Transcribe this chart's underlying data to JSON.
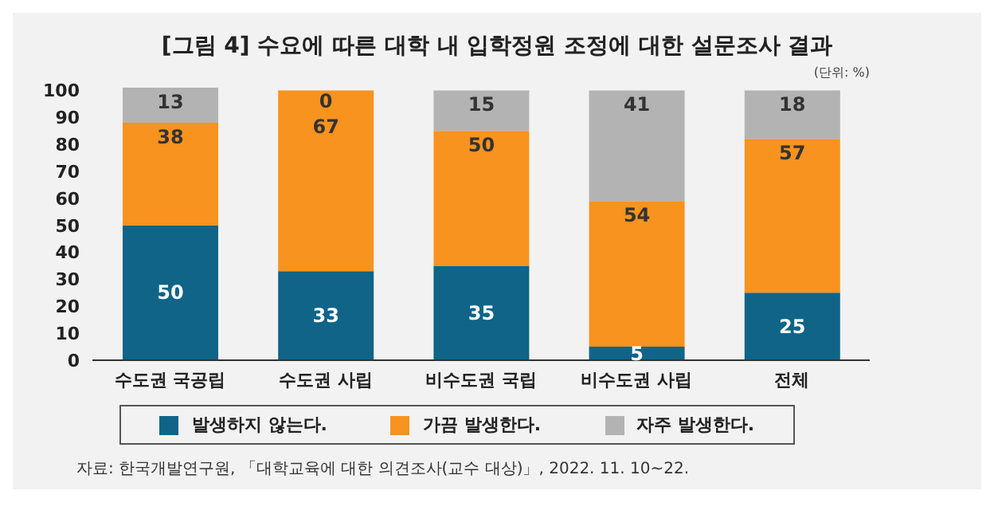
{
  "chart_data": {
    "type": "bar",
    "title": "[그림 4] 수요에 따른 대학 내 입학정원 조정에 대한 설문조사 결과",
    "categories": [
      "수도권 국공립",
      "수도권 사립",
      "비수도권 국립",
      "비수도권 사립",
      "전체"
    ],
    "series": [
      {
        "name": "발생하지 않는다.",
        "color": "#0f6488",
        "values": [
          50,
          33,
          35,
          5,
          25
        ]
      },
      {
        "name": "가끔 발생한다.",
        "color": "#f7931e",
        "values": [
          38,
          67,
          50,
          54,
          57
        ]
      },
      {
        "name": "자주 발생한다.",
        "color": "#b3b3b3",
        "values": [
          13,
          0,
          15,
          41,
          18
        ]
      }
    ],
    "stacked": true,
    "data_labels": true,
    "ylim": [
      0,
      101
    ],
    "yticks": [
      0,
      10,
      20,
      30,
      40,
      50,
      60,
      70,
      80,
      90,
      100
    ],
    "grid": false,
    "legend": "bottom",
    "annotations": [
      "(단위: %)",
      "자료: 한국개발연구원, 「대학교육에 대한 의견조사(교수 대상)」, 2022. 11. 10~22."
    ]
  }
}
